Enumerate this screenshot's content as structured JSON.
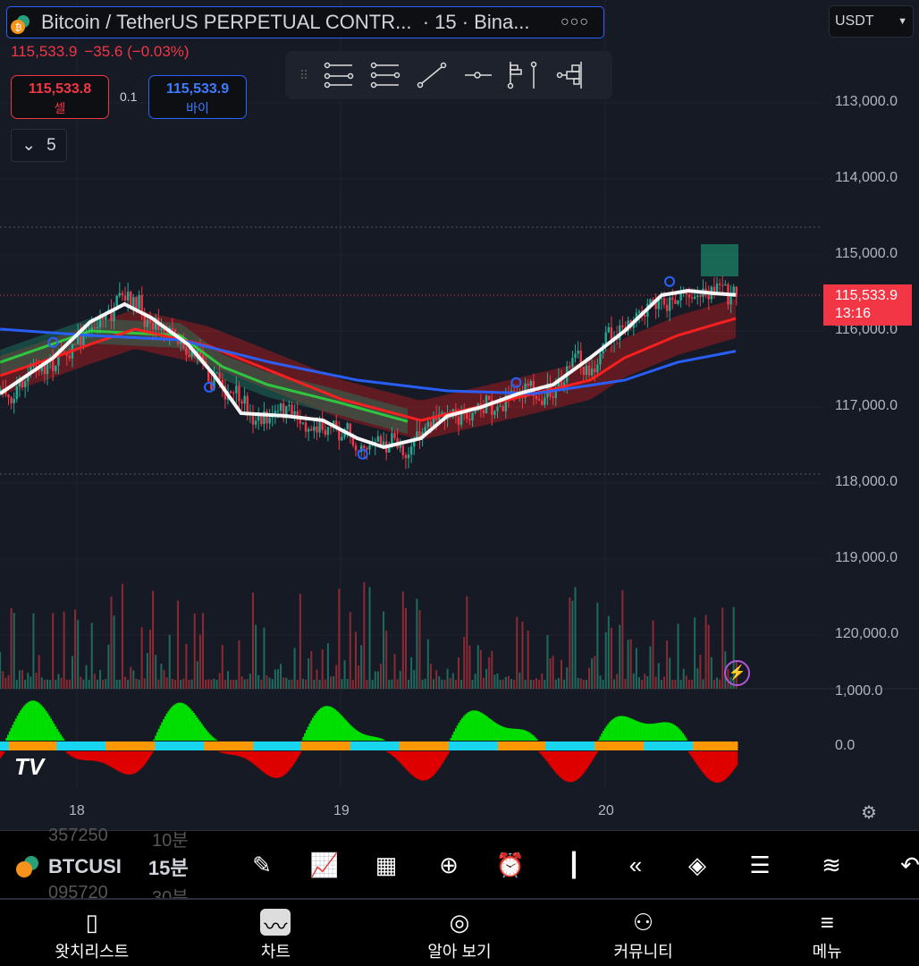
{
  "header": {
    "title": "Bitcoin / TetherUS PERPETUAL CONTR...",
    "interval_exchange": "· 15 · Bina...",
    "more_icon": "more-dots-icon",
    "currency": "USDT"
  },
  "quote": {
    "last": "115,533.9",
    "change": "−35.6 (−0.03%)",
    "sell_price": "115,533.8",
    "sell_label": "셀",
    "spread": "0.1",
    "buy_price": "115,533.9",
    "buy_label": "바이",
    "indicators_count": "5"
  },
  "price_tag": {
    "price": "115,533.9",
    "countdown": "13:16"
  },
  "drawing_toolbar": [
    "fib-retracement-icon",
    "trend-fib-icon",
    "trend-line-icon",
    "horizontal-ray-icon",
    "volume-profile-icon",
    "fixed-range-volume-icon"
  ],
  "colors": {
    "up": "#22ab94",
    "down": "#f23645",
    "ma_white": "#ffffff",
    "ma_blue": "#2962ff",
    "ma_red": "#ff2020",
    "ma_green": "#2ecc40",
    "buy": "#2962ff",
    "osc_up": "#00e000",
    "osc_down": "#e00000",
    "osc_line_a": "#ff9800",
    "osc_line_b": "#18d6f2"
  },
  "chart_data": {
    "type": "candlestick",
    "y_axis_inverted": true,
    "yticks": [
      "113,000.0",
      "114,000.0",
      "115,000.0",
      "116,000.0",
      "117,000.0",
      "118,000.0",
      "119,000.0",
      "120,000.0"
    ],
    "ytick_values": [
      113000,
      114000,
      115000,
      116000,
      117000,
      118000,
      119000,
      120000
    ],
    "xticks": [
      "18",
      "19",
      "20"
    ],
    "xtick_values": [
      18,
      19,
      20
    ],
    "xlim": [
      17.71,
      20.98
    ],
    "series": [
      {
        "color": "#ffffff",
        "x": [
          17.71,
          17.91,
          18.05,
          18.18,
          18.28,
          18.42,
          18.52,
          18.62,
          18.79,
          18.93,
          19.06,
          19.16,
          19.3,
          19.4,
          19.53,
          19.67,
          19.8,
          19.94,
          20.07,
          20.21,
          20.31,
          20.41,
          20.5
        ],
        "y": [
          116824,
          116353,
          115882,
          115647,
          115824,
          116176,
          116588,
          117082,
          117118,
          117176,
          117412,
          117529,
          117412,
          117118,
          117000,
          116824,
          116706,
          116353,
          116000,
          115529,
          115471,
          115506,
          115529
        ]
      },
      {
        "color": "#2962ff",
        "x": [
          17.71,
          18.05,
          18.39,
          18.73,
          19.06,
          19.4,
          19.73,
          20.07,
          20.27,
          20.5
        ],
        "y": [
          115976,
          116059,
          116118,
          116412,
          116647,
          116788,
          116824,
          116647,
          116412,
          116259
        ]
      },
      {
        "color": "#ff2020",
        "x": [
          17.71,
          17.91,
          18.05,
          18.22,
          18.5,
          19.0,
          19.3,
          19.73,
          19.94,
          20.07,
          20.27,
          20.5
        ],
        "y": [
          116588,
          116353,
          116176,
          115976,
          116200,
          116900,
          117176,
          116824,
          116647,
          116353,
          116059,
          115824
        ]
      },
      {
        "color": "#2ecc40",
        "x": [
          17.71,
          18.05,
          18.39,
          18.55,
          18.72,
          18.99,
          19.26
        ],
        "y": [
          116412,
          116000,
          116059,
          116471,
          116706,
          116941,
          117200
        ]
      }
    ],
    "volume_axis_label": "1,000.0",
    "oscillator_axis_label": "0.0"
  },
  "bottom_toolbar": {
    "ticker": "BTCUSI",
    "interval": "15분",
    "prev_interval": "10분",
    "next_interval": "30분",
    "prev_ghost": "357250",
    "next_ghost": "095720",
    "tools": [
      "pencil-icon",
      "indicator-chart-icon",
      "grid-icon",
      "plus-circle-icon",
      "alarm-clock-icon",
      "candles-icon",
      "replay-icon",
      "layers-icon",
      "sliders-icon",
      "wave-icon",
      "undo-icon"
    ]
  },
  "nav": [
    {
      "label": "왓치리스트",
      "icon": "watchlist-icon"
    },
    {
      "label": "차트",
      "icon": "chart-icon"
    },
    {
      "label": "알아 보기",
      "icon": "compass-icon"
    },
    {
      "label": "커뮤니티",
      "icon": "community-icon"
    },
    {
      "label": "메뉴",
      "icon": "menu-icon"
    }
  ]
}
